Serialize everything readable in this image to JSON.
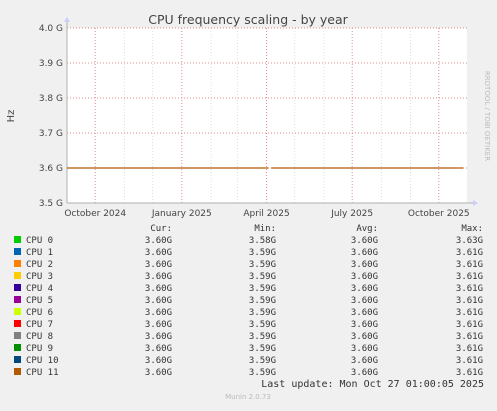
{
  "chart_data": {
    "type": "line",
    "title": "CPU frequency scaling - by year",
    "ylabel": "Hz",
    "xlabel": "",
    "ylim": [
      3.5,
      4.0
    ],
    "y_ticks": [
      {
        "value": 4.0,
        "label": "4.0 G"
      },
      {
        "value": 3.9,
        "label": "3.9 G"
      },
      {
        "value": 3.8,
        "label": "3.8 G"
      },
      {
        "value": 3.7,
        "label": "3.7 G"
      },
      {
        "value": 3.6,
        "label": "3.6 G"
      },
      {
        "value": 3.5,
        "label": "3.5 G"
      }
    ],
    "x_range": [
      "2024-09-01",
      "2025-10-31"
    ],
    "x_ticks": [
      {
        "date": "2024-10-01",
        "label": "October 2024"
      },
      {
        "date": "2025-01-01",
        "label": "January 2025"
      },
      {
        "date": "2025-04-01",
        "label": "April 2025"
      },
      {
        "date": "2025-07-01",
        "label": "July 2025"
      },
      {
        "date": "2025-10-01",
        "label": "October 2025"
      }
    ],
    "x_minor_ticks": [
      "2024-09-01",
      "2024-11-01",
      "2024-12-01",
      "2025-02-01",
      "2025-03-01",
      "2025-05-01",
      "2025-06-01",
      "2025-08-01",
      "2025-09-01"
    ],
    "grid": true,
    "line_segments": [
      {
        "from": "2024-09-01",
        "to": "2025-04-03",
        "value": 3.6
      },
      {
        "from": "2025-04-06",
        "to": "2025-10-27",
        "value": 3.6
      }
    ],
    "series": [
      {
        "name": "CPU 0",
        "color": "#00cc00",
        "cur": "3.60G",
        "min": "3.58G",
        "avg": "3.60G",
        "max": "3.63G"
      },
      {
        "name": "CPU 1",
        "color": "#0066b3",
        "cur": "3.60G",
        "min": "3.59G",
        "avg": "3.60G",
        "max": "3.61G"
      },
      {
        "name": "CPU 2",
        "color": "#ff8000",
        "cur": "3.60G",
        "min": "3.59G",
        "avg": "3.60G",
        "max": "3.61G"
      },
      {
        "name": "CPU 3",
        "color": "#ffcc00",
        "cur": "3.60G",
        "min": "3.59G",
        "avg": "3.60G",
        "max": "3.61G"
      },
      {
        "name": "CPU 4",
        "color": "#330099",
        "cur": "3.60G",
        "min": "3.59G",
        "avg": "3.60G",
        "max": "3.61G"
      },
      {
        "name": "CPU 5",
        "color": "#990099",
        "cur": "3.60G",
        "min": "3.59G",
        "avg": "3.60G",
        "max": "3.61G"
      },
      {
        "name": "CPU 6",
        "color": "#ccff00",
        "cur": "3.60G",
        "min": "3.59G",
        "avg": "3.60G",
        "max": "3.61G"
      },
      {
        "name": "CPU 7",
        "color": "#ff0000",
        "cur": "3.60G",
        "min": "3.59G",
        "avg": "3.60G",
        "max": "3.61G"
      },
      {
        "name": "CPU 8",
        "color": "#808080",
        "cur": "3.60G",
        "min": "3.59G",
        "avg": "3.60G",
        "max": "3.61G"
      },
      {
        "name": "CPU 9",
        "color": "#008f00",
        "cur": "3.60G",
        "min": "3.59G",
        "avg": "3.60G",
        "max": "3.61G"
      },
      {
        "name": "CPU 10",
        "color": "#00487d",
        "cur": "3.60G",
        "min": "3.59G",
        "avg": "3.60G",
        "max": "3.61G"
      },
      {
        "name": "CPU 11",
        "color": "#b35a00",
        "cur": "3.60G",
        "min": "3.59G",
        "avg": "3.60G",
        "max": "3.61G"
      }
    ],
    "column_headers": {
      "cur": "Cur:",
      "min": "Min:",
      "avg": "Avg:",
      "max": "Max:"
    }
  },
  "watermark": "RRDTOOL / TOBI OETIKER",
  "last_update": "Last update: Mon Oct 27 01:00:05 2025",
  "footer": "Munin 2.0.73",
  "colors": {
    "background": "#f0f0f0",
    "plot_bg": "#ffffff",
    "grid_major": "#e28a8a",
    "grid_minor": "#dcdcdc",
    "axis": "#b0b0b0",
    "axis_arrow": "#ccccff",
    "line": "#b35a00"
  }
}
